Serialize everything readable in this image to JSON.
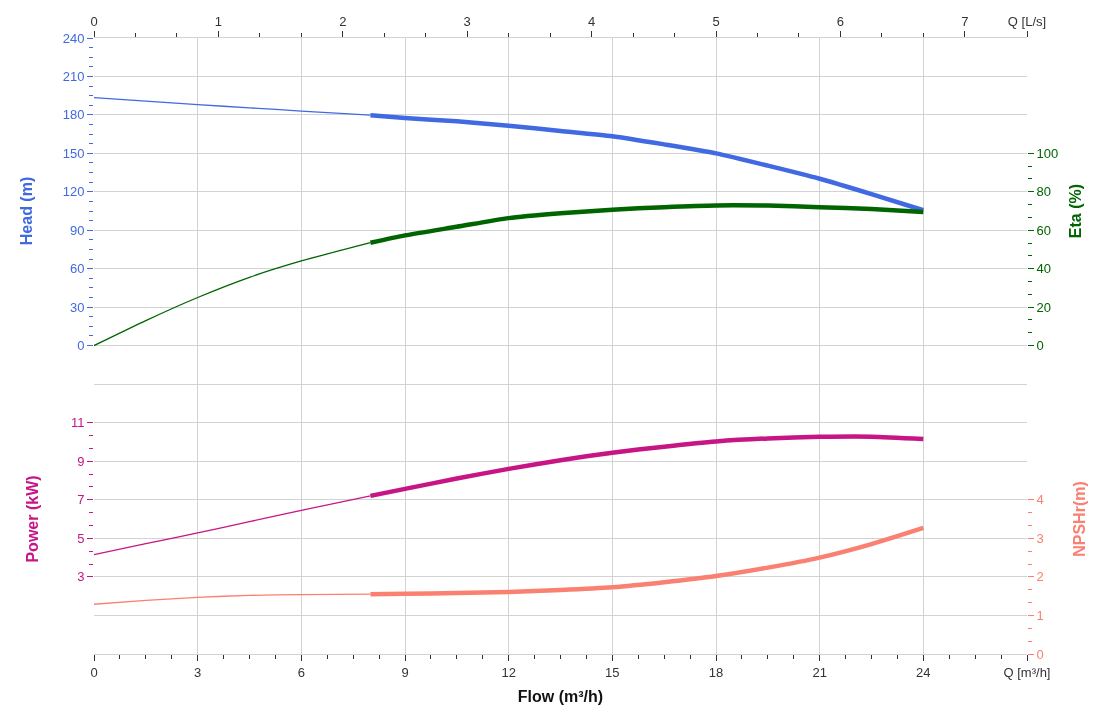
{
  "chart_data": [
    {
      "type": "line",
      "ylabel": "Head (m)",
      "y2label": "Eta (%)",
      "xlim": [
        0,
        27
      ],
      "xticks": [
        0,
        3,
        6,
        9,
        12,
        15,
        18,
        21,
        24,
        27
      ],
      "x2lim": [
        0,
        7.5
      ],
      "x2ticks": [
        0,
        1,
        2,
        3,
        4,
        5,
        6,
        7,
        {
          "value": 7.5,
          "label": "Q [L/s]"
        }
      ],
      "ylim": [
        -30,
        240
      ],
      "yticks": [
        0,
        30,
        60,
        90,
        120,
        150,
        180,
        210,
        240
      ],
      "y2lim": [
        -20,
        160
      ],
      "y2ticks": [
        0,
        20,
        40,
        60,
        80,
        100
      ],
      "tick_labels": "y",
      "grid": true,
      "series": [
        {
          "color": "#4169e1",
          "x": [
            0,
            1.5,
            3,
            4.5,
            6,
            8
          ],
          "values": [
            193.5,
            190.8,
            188,
            185.5,
            183,
            179.8
          ]
        },
        {
          "color": "#4169e1",
          "x": [
            8,
            9,
            10.5,
            12,
            13.5,
            15,
            16.5,
            18,
            19.5,
            21,
            22.5,
            24
          ],
          "values": [
            179.8,
            177.6,
            175,
            171.6,
            167.5,
            163.4,
            157,
            150,
            140.4,
            130.2,
            118.2,
            105.6
          ]
        },
        {
          "color": "#006400",
          "axis": "y2",
          "x": [
            0,
            1.5,
            3,
            4.5,
            6,
            8
          ],
          "values": [
            0,
            13,
            25,
            35.5,
            44,
            53.5
          ]
        },
        {
          "color": "#006400",
          "axis": "y2",
          "x": [
            8,
            9,
            10.5,
            12,
            13.5,
            15,
            16.5,
            18,
            19.5,
            21,
            22.5,
            24
          ],
          "values": [
            53.5,
            57.3,
            61.8,
            66.3,
            68.8,
            70.7,
            72,
            72.9,
            72.8,
            72,
            71,
            69.5
          ]
        }
      ]
    },
    {
      "type": "line",
      "xlabel": "Flow (m³/h)",
      "ylabel": "Power (kW)",
      "y2label": "NPSHr(m)",
      "xlim": [
        0,
        27
      ],
      "xticks": [
        0,
        3,
        6,
        9,
        12,
        15,
        18,
        21,
        24,
        {
          "value": 27,
          "label": "Q [m³/h]"
        }
      ],
      "ylim": [
        -1,
        13
      ],
      "yticks": [
        3,
        5,
        7,
        9,
        11
      ],
      "y2lim": [
        0,
        7
      ],
      "y2ticks": [
        0,
        1,
        2,
        3,
        4
      ],
      "grid": true,
      "series": [
        {
          "color": "#c71585",
          "x": [
            0,
            1.5,
            3,
            4.5,
            6,
            8
          ],
          "values": [
            4.15,
            4.72,
            5.28,
            5.86,
            6.45,
            7.2
          ]
        },
        {
          "color": "#c71585",
          "x": [
            8,
            9,
            10.5,
            12,
            13.5,
            15,
            16.5,
            18,
            19.5,
            21,
            22.5,
            24
          ],
          "values": [
            7.2,
            7.56,
            8.1,
            8.6,
            9.05,
            9.44,
            9.75,
            10.02,
            10.18,
            10.26,
            10.27,
            10.15
          ]
        },
        {
          "color": "#fa8072",
          "axis": "y2",
          "x": [
            0,
            1.5,
            3,
            4.5,
            6,
            8
          ],
          "values": [
            1.29,
            1.39,
            1.47,
            1.52,
            1.54,
            1.55
          ]
        },
        {
          "color": "#fa8072",
          "axis": "y2",
          "x": [
            8,
            9,
            10.5,
            12,
            13.5,
            15,
            16.5,
            18,
            19.5,
            21,
            22.5,
            24
          ],
          "values": [
            1.55,
            1.56,
            1.58,
            1.61,
            1.66,
            1.73,
            1.86,
            2.02,
            2.24,
            2.5,
            2.85,
            3.27
          ]
        }
      ]
    }
  ]
}
